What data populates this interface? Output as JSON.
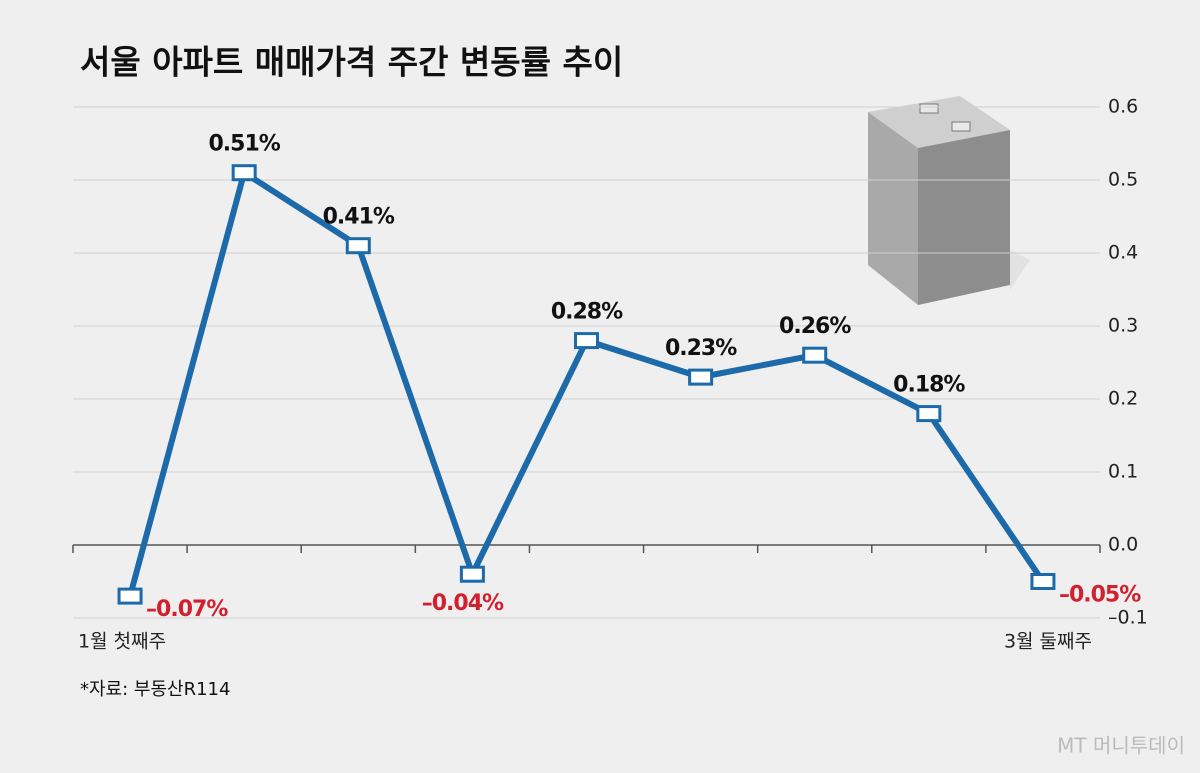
{
  "chart_data": {
    "type": "line",
    "title": "서울 아파트 매매가격 주간 변동률 추이",
    "categories": [
      "1월 첫째주",
      null,
      null,
      null,
      null,
      null,
      null,
      null,
      "3월 둘째주"
    ],
    "values": [
      -0.07,
      0.51,
      0.41,
      -0.04,
      0.28,
      0.23,
      0.26,
      0.18,
      -0.05
    ],
    "value_labels": [
      "–0.07%",
      "0.51%",
      "0.41%",
      "–0.04%",
      "0.28%",
      "0.23%",
      "0.26%",
      "0.18%",
      "–0.05%"
    ],
    "color": "#1c6aa9",
    "negative_label_color": "#d2202f",
    "ylim": [
      -0.1,
      0.6
    ],
    "yticks": [
      {
        "value": -0.1,
        "label": "–0.1"
      },
      {
        "value": 0,
        "label": "0.0"
      },
      0.1,
      0.2,
      0.3,
      0.4,
      0.5,
      0.6
    ],
    "grid": true,
    "source": "*자료: 부동산R114",
    "watermark": "MT 머니투데이"
  }
}
